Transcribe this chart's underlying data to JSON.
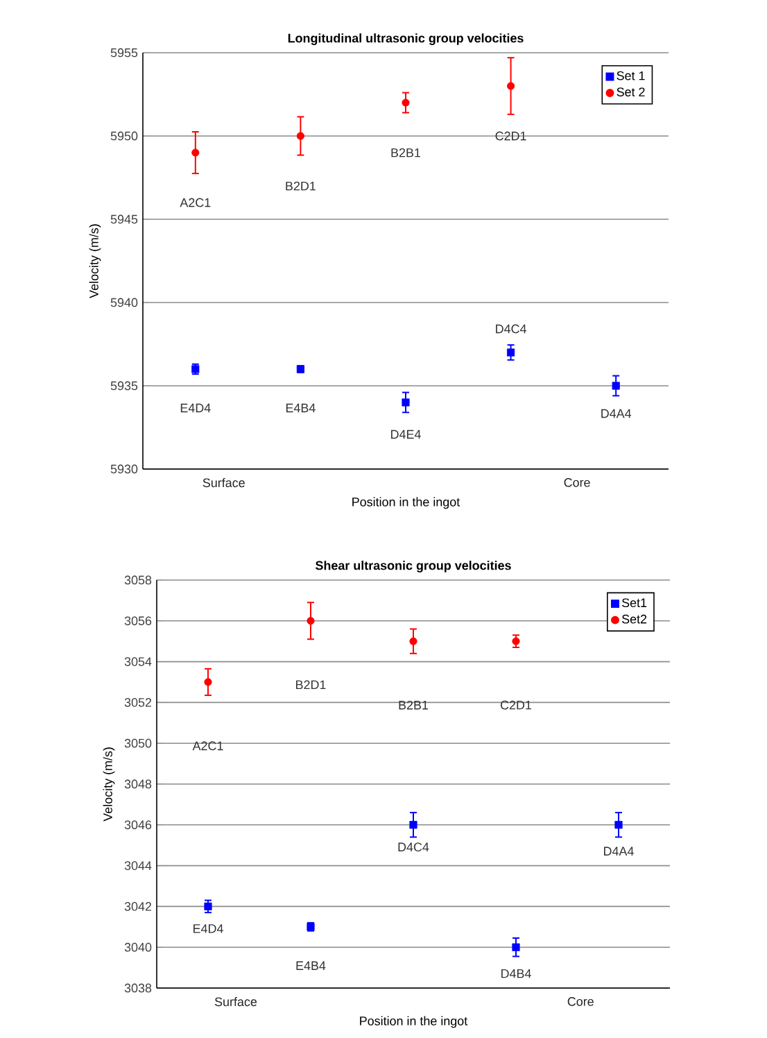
{
  "chart_data": [
    {
      "type": "scatter",
      "title": "Longitudinal ultrasonic group velocities",
      "xlabel": "Position in the ingot",
      "ylabel": "Velocity (m/s)",
      "categories": [
        null,
        null,
        null,
        null,
        null
      ],
      "ylim": [
        5930,
        5955
      ],
      "yticks": [
        5930,
        5935,
        5940,
        5945,
        5950,
        5955
      ],
      "grid": "y",
      "legend": "top right",
      "series": [
        {
          "name": "Set 1",
          "color": "#0000ff",
          "marker": "square",
          "values": [
            5936,
            5936,
            5934,
            5937,
            5935
          ],
          "errors": [
            0.3,
            0.2,
            0.6,
            0.45,
            0.6
          ]
        },
        {
          "name": "Set 2",
          "color": "#ff0000",
          "marker": "circle",
          "values": [
            5949,
            5950,
            5952,
            5953,
            null
          ],
          "errors": [
            1.25,
            1.15,
            0.6,
            1.7,
            null
          ]
        }
      ],
      "annotations": [
        "E4D4",
        "E4B4",
        "D4E4",
        "D4C4",
        "D4A4",
        "A2C1",
        "B2D1",
        "B2B1",
        "C2D1",
        "Surface",
        "Core"
      ]
    },
    {
      "type": "scatter",
      "title": "Shear ultrasonic group velocities",
      "xlabel": "Position in the ingot",
      "ylabel": "Velocity (m/s)",
      "categories": [
        null,
        null,
        null,
        null,
        null
      ],
      "ylim": [
        3038,
        3058
      ],
      "yticks": [
        3038,
        3040,
        3042,
        3044,
        3046,
        3048,
        3050,
        3052,
        3054,
        3056,
        3058
      ],
      "grid": "y",
      "legend": "top right",
      "series": [
        {
          "name": "Set1",
          "color": "#0000ff",
          "marker": "square",
          "values": [
            3042,
            3041,
            3046,
            3040,
            3046
          ],
          "errors": [
            0.3,
            0.2,
            0.6,
            0.45,
            0.6
          ]
        },
        {
          "name": "Set2",
          "color": "#ff0000",
          "marker": "circle",
          "values": [
            3053,
            3056,
            3055,
            3055,
            null
          ],
          "errors": [
            0.65,
            0.9,
            0.6,
            0.3,
            null
          ]
        }
      ],
      "annotations": [
        "E4D4",
        "E4B4",
        "D4C4",
        "D4B4",
        "D4A4",
        "A2C1",
        "B2D1",
        "B2B1",
        "C2D1",
        "Surface",
        "Core"
      ]
    }
  ]
}
